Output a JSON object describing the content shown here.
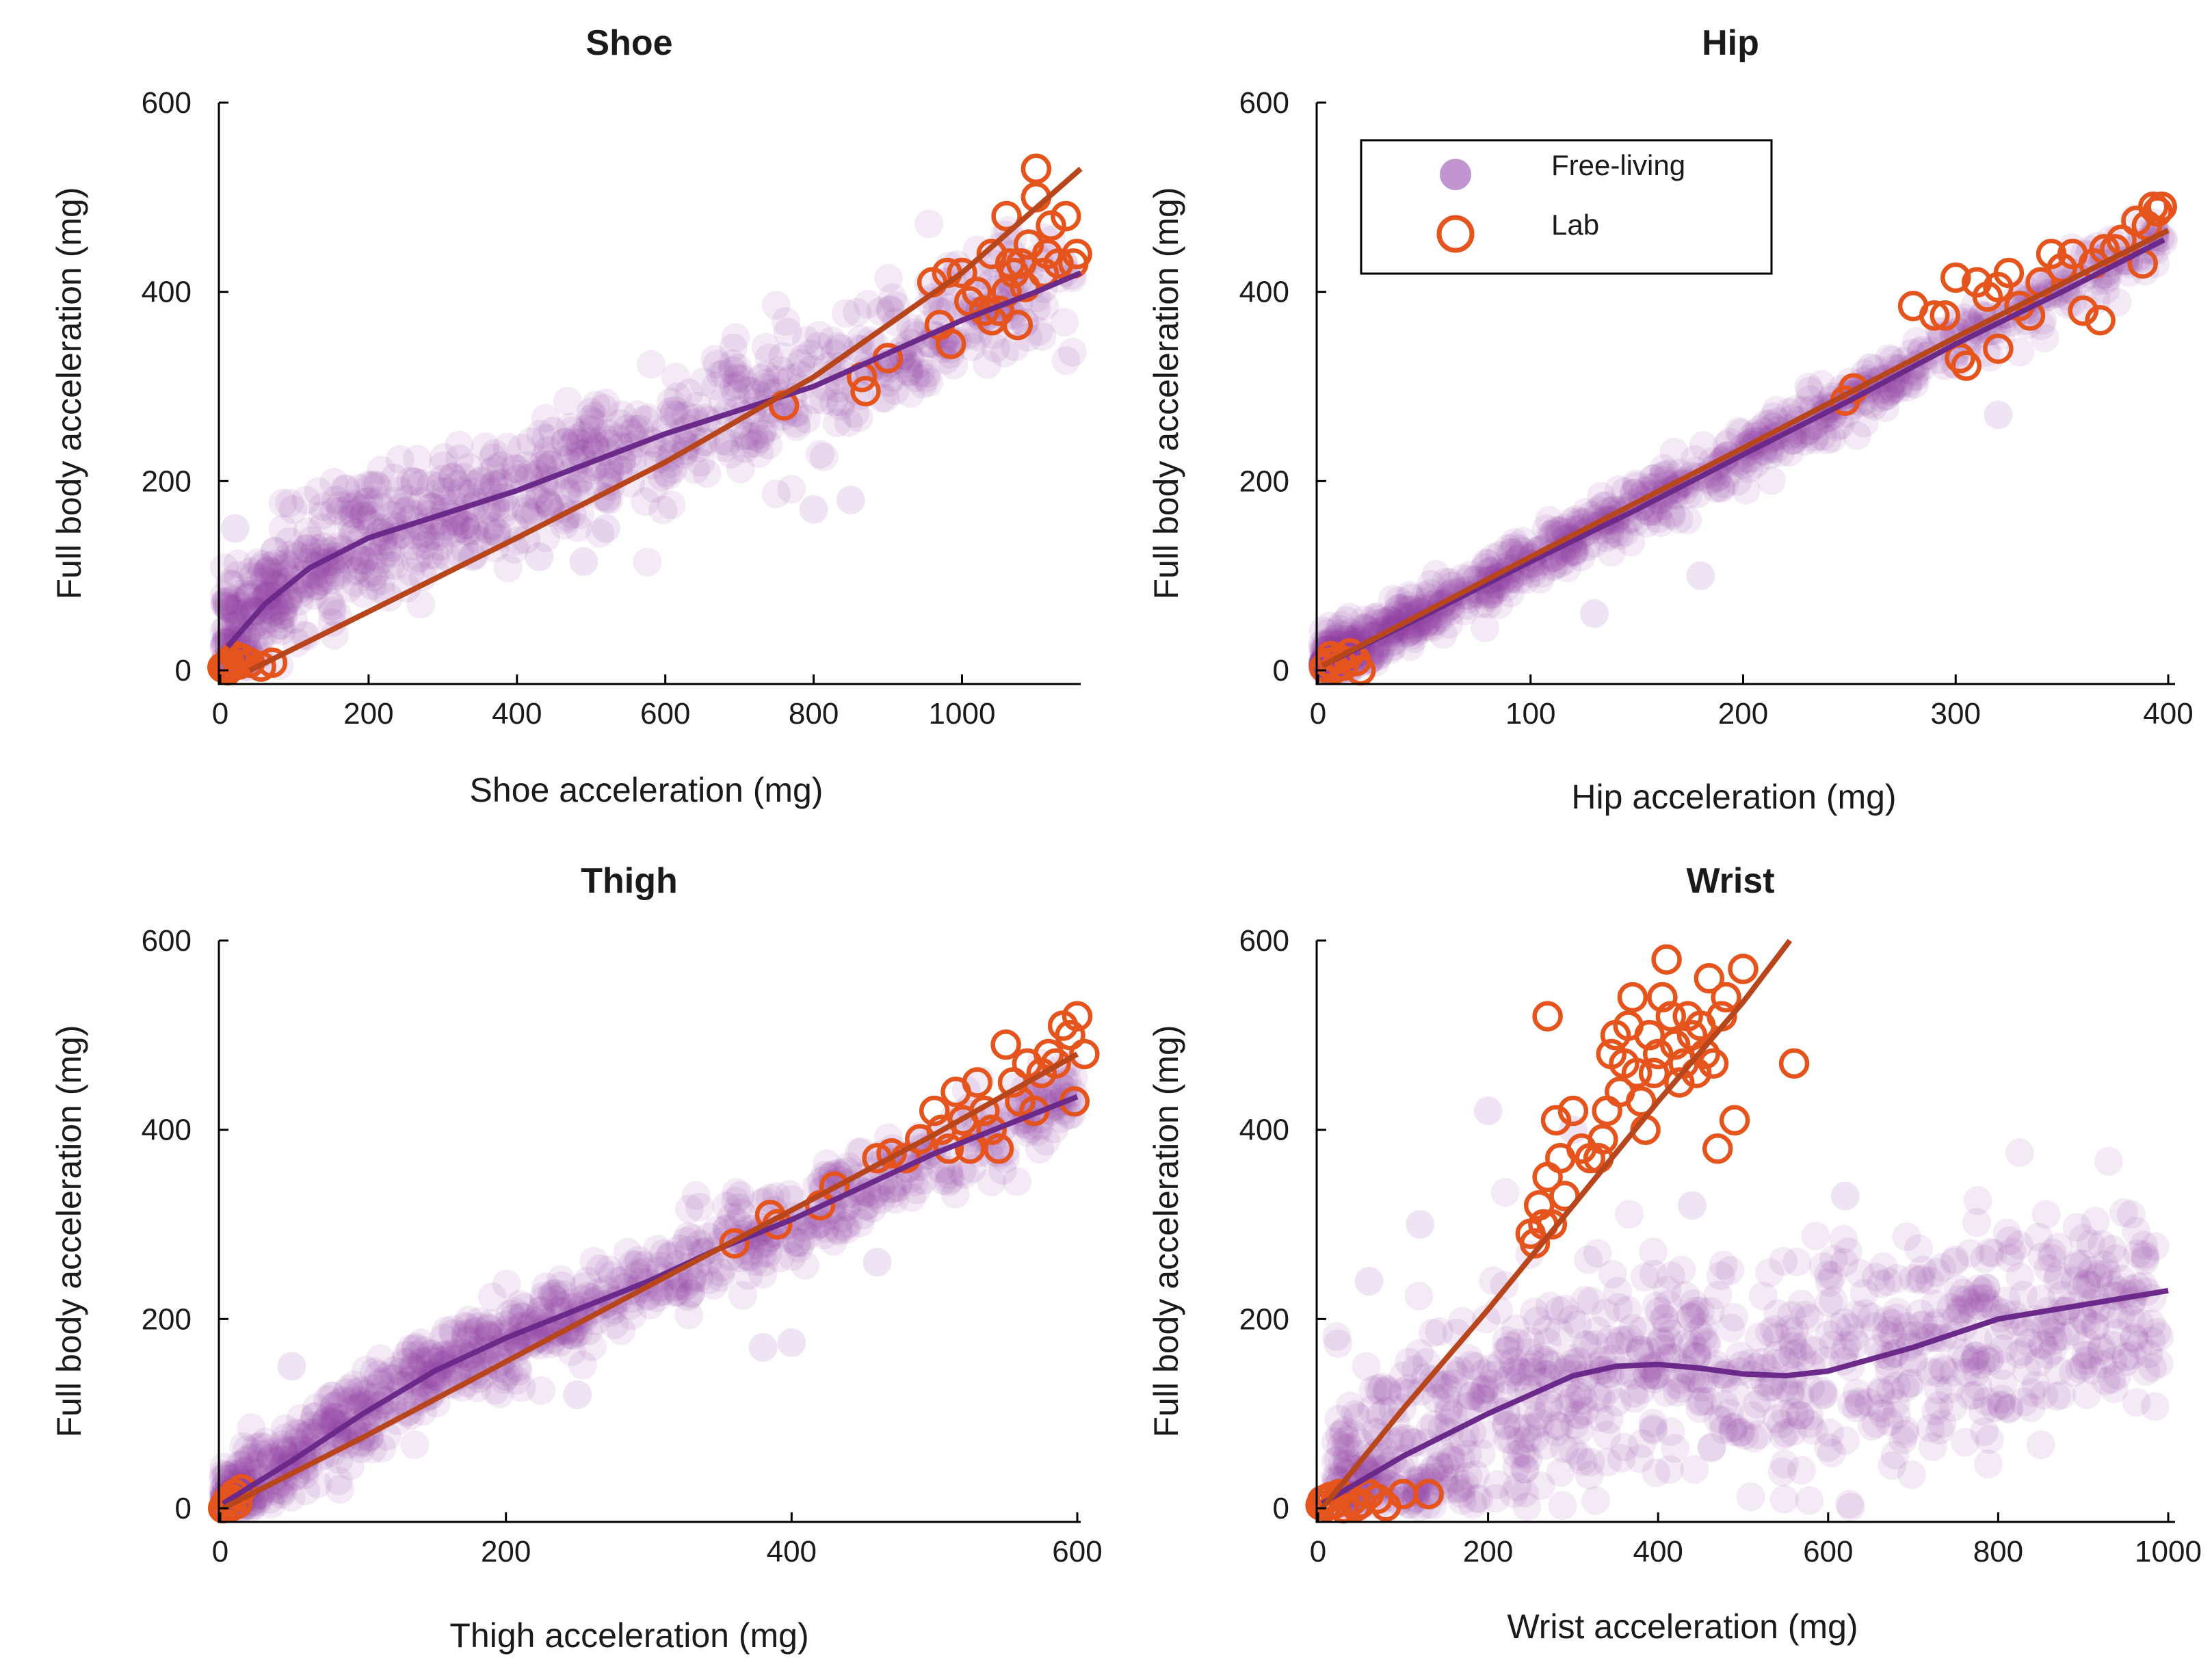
{
  "colors": {
    "free_living": "#8e3ea8",
    "free_living_fit": "#6b2a8a",
    "lab": "#e4541c",
    "lab_fit": "#b8461c"
  },
  "legend": {
    "items": [
      {
        "label": "Free-living",
        "marker": "filled-circle"
      },
      {
        "label": "Lab",
        "marker": "open-circle"
      }
    ],
    "placement": "top-left of Hip panel"
  },
  "chart_data": [
    {
      "type": "scatter",
      "title": "Shoe",
      "xlabel": "Shoe acceleration (mg)",
      "ylabel": "Full body acceleration (mg)",
      "xlim": [
        0,
        1160
      ],
      "ylim": [
        0,
        600
      ],
      "xticks": [
        0,
        200,
        400,
        600,
        800,
        1000
      ],
      "yticks": [
        0,
        200,
        400,
        600
      ],
      "free_living_cloud": {
        "approx_points": 900,
        "seed": 11,
        "x_range": [
          5,
          1150
        ],
        "x_skew": 1.5,
        "y_spread_sd": 34,
        "outliers": [
          [
            800,
            170
          ],
          [
            850,
            180
          ],
          [
            430,
            120
          ],
          [
            490,
            115
          ],
          [
            520,
            150
          ],
          [
            20,
            150
          ],
          [
            340,
            120
          ]
        ]
      },
      "free_living_fit": [
        [
          10,
          25
        ],
        [
          60,
          70
        ],
        [
          120,
          108
        ],
        [
          200,
          140
        ],
        [
          300,
          165
        ],
        [
          400,
          190
        ],
        [
          500,
          220
        ],
        [
          600,
          250
        ],
        [
          700,
          275
        ],
        [
          800,
          300
        ],
        [
          900,
          335
        ],
        [
          1000,
          370
        ],
        [
          1100,
          400
        ],
        [
          1160,
          420
        ]
      ],
      "lab_points": [
        [
          5,
          2
        ],
        [
          8,
          5
        ],
        [
          12,
          10
        ],
        [
          15,
          4
        ],
        [
          20,
          15
        ],
        [
          25,
          6
        ],
        [
          30,
          12
        ],
        [
          3,
          3
        ],
        [
          10,
          0
        ],
        [
          40,
          8
        ],
        [
          55,
          4
        ],
        [
          70,
          8
        ],
        [
          760,
          280
        ],
        [
          865,
          310
        ],
        [
          870,
          295
        ],
        [
          900,
          330
        ],
        [
          960,
          410
        ],
        [
          970,
          365
        ],
        [
          980,
          420
        ],
        [
          985,
          345
        ],
        [
          1000,
          420
        ],
        [
          1010,
          390
        ],
        [
          1020,
          400
        ],
        [
          1030,
          380
        ],
        [
          1040,
          440
        ],
        [
          1040,
          370
        ],
        [
          1050,
          380
        ],
        [
          1060,
          400
        ],
        [
          1060,
          480
        ],
        [
          1065,
          430
        ],
        [
          1070,
          420
        ],
        [
          1075,
          365
        ],
        [
          1080,
          430
        ],
        [
          1085,
          405
        ],
        [
          1090,
          450
        ],
        [
          1100,
          500
        ],
        [
          1100,
          530
        ],
        [
          1110,
          420
        ],
        [
          1115,
          440
        ],
        [
          1120,
          470
        ],
        [
          1130,
          430
        ],
        [
          1140,
          480
        ],
        [
          1150,
          430
        ],
        [
          1155,
          440
        ]
      ],
      "lab_fit": [
        [
          40,
          0
        ],
        [
          200,
          62
        ],
        [
          400,
          140
        ],
        [
          600,
          220
        ],
        [
          800,
          310
        ],
        [
          1000,
          420
        ],
        [
          1160,
          530
        ]
      ]
    },
    {
      "type": "scatter",
      "title": "Hip",
      "xlabel": "Hip acceleration (mg)",
      "ylabel": "Full body acceleration (mg)",
      "xlim": [
        0,
        400
      ],
      "ylim": [
        0,
        600
      ],
      "xticks": [
        0,
        100,
        200,
        300,
        400
      ],
      "yticks": [
        0,
        200,
        400,
        600
      ],
      "free_living_cloud": {
        "approx_points": 900,
        "seed": 23,
        "x_range": [
          2,
          398
        ],
        "x_skew": 1.6,
        "y_spread_sd": 14,
        "outliers": [
          [
            130,
            60
          ],
          [
            180,
            100
          ],
          [
            320,
            270
          ],
          [
            260,
            320
          ]
        ]
      },
      "free_living_fit": [
        [
          2,
          5
        ],
        [
          50,
          58
        ],
        [
          100,
          115
        ],
        [
          150,
          170
        ],
        [
          200,
          228
        ],
        [
          250,
          285
        ],
        [
          300,
          345
        ],
        [
          350,
          400
        ],
        [
          398,
          455
        ]
      ],
      "lab_points": [
        [
          3,
          3
        ],
        [
          5,
          8
        ],
        [
          8,
          2
        ],
        [
          10,
          12
        ],
        [
          12,
          5
        ],
        [
          15,
          18
        ],
        [
          18,
          10
        ],
        [
          20,
          0
        ],
        [
          6,
          15
        ],
        [
          248,
          285
        ],
        [
          252,
          298
        ],
        [
          280,
          385
        ],
        [
          290,
          375
        ],
        [
          295,
          375
        ],
        [
          300,
          415
        ],
        [
          302,
          330
        ],
        [
          305,
          322
        ],
        [
          310,
          410
        ],
        [
          315,
          395
        ],
        [
          320,
          340
        ],
        [
          320,
          405
        ],
        [
          325,
          420
        ],
        [
          330,
          385
        ],
        [
          335,
          375
        ],
        [
          340,
          410
        ],
        [
          345,
          440
        ],
        [
          350,
          425
        ],
        [
          355,
          440
        ],
        [
          360,
          380
        ],
        [
          365,
          430
        ],
        [
          368,
          370
        ],
        [
          370,
          445
        ],
        [
          375,
          445
        ],
        [
          378,
          455
        ],
        [
          385,
          475
        ],
        [
          388,
          430
        ],
        [
          390,
          470
        ],
        [
          393,
          490
        ],
        [
          395,
          485
        ],
        [
          397,
          490
        ]
      ],
      "lab_fit": [
        [
          2,
          5
        ],
        [
          100,
          120
        ],
        [
          200,
          235
        ],
        [
          300,
          352
        ],
        [
          400,
          465
        ]
      ]
    },
    {
      "type": "scatter",
      "title": "Thigh",
      "xlabel": "Thigh acceleration (mg)",
      "ylabel": "Full body acceleration (mg)",
      "xlim": [
        0,
        600
      ],
      "ylim": [
        0,
        600
      ],
      "xticks": [
        0,
        200,
        400,
        600
      ],
      "yticks": [
        0,
        200,
        400,
        600
      ],
      "free_living_cloud": {
        "approx_points": 900,
        "seed": 37,
        "x_range": [
          2,
          598
        ],
        "x_skew": 1.5,
        "y_spread_sd": 22,
        "outliers": [
          [
            380,
            170
          ],
          [
            400,
            175
          ],
          [
            250,
            120
          ],
          [
            50,
            150
          ],
          [
            460,
            260
          ]
        ]
      },
      "free_living_fit": [
        [
          2,
          5
        ],
        [
          50,
          50
        ],
        [
          100,
          100
        ],
        [
          150,
          145
        ],
        [
          200,
          180
        ],
        [
          250,
          210
        ],
        [
          300,
          240
        ],
        [
          350,
          275
        ],
        [
          400,
          305
        ],
        [
          450,
          340
        ],
        [
          500,
          375
        ],
        [
          550,
          405
        ],
        [
          600,
          435
        ]
      ],
      "lab_points": [
        [
          3,
          3
        ],
        [
          5,
          8
        ],
        [
          8,
          2
        ],
        [
          10,
          15
        ],
        [
          12,
          5
        ],
        [
          15,
          20
        ],
        [
          8,
          10
        ],
        [
          2,
          0
        ],
        [
          360,
          280
        ],
        [
          385,
          310
        ],
        [
          390,
          300
        ],
        [
          420,
          320
        ],
        [
          430,
          340
        ],
        [
          460,
          370
        ],
        [
          470,
          375
        ],
        [
          480,
          370
        ],
        [
          490,
          390
        ],
        [
          500,
          420
        ],
        [
          505,
          400
        ],
        [
          510,
          380
        ],
        [
          515,
          440
        ],
        [
          520,
          410
        ],
        [
          525,
          380
        ],
        [
          530,
          450
        ],
        [
          535,
          420
        ],
        [
          540,
          400
        ],
        [
          545,
          380
        ],
        [
          550,
          490
        ],
        [
          555,
          450
        ],
        [
          560,
          430
        ],
        [
          565,
          470
        ],
        [
          570,
          420
        ],
        [
          575,
          460
        ],
        [
          580,
          480
        ],
        [
          585,
          470
        ],
        [
          590,
          510
        ],
        [
          595,
          500
        ],
        [
          598,
          430
        ],
        [
          600,
          520
        ],
        [
          605,
          480
        ]
      ],
      "lab_fit": [
        [
          2,
          0
        ],
        [
          100,
          75
        ],
        [
          200,
          155
        ],
        [
          300,
          235
        ],
        [
          400,
          315
        ],
        [
          500,
          395
        ],
        [
          600,
          480
        ]
      ]
    },
    {
      "type": "scatter",
      "title": "Wrist",
      "xlabel": "Wrist acceleration (mg)",
      "ylabel": "Full body acceleration (mg)",
      "xlim": [
        0,
        1000
      ],
      "ylim": [
        0,
        600
      ],
      "xticks": [
        0,
        200,
        400,
        600,
        800,
        1000
      ],
      "yticks": [
        0,
        200,
        400,
        600
      ],
      "free_living_cloud": {
        "approx_points": 900,
        "seed": 51,
        "x_range": [
          20,
          990
        ],
        "x_skew": 1.2,
        "y_spread_sd": 60,
        "outliers": [
          [
            60,
            240
          ],
          [
            120,
            300
          ],
          [
            200,
            420
          ],
          [
            300,
            400
          ],
          [
            440,
            320
          ],
          [
            620,
            330
          ],
          [
            900,
            150
          ],
          [
            950,
            160
          ]
        ]
      },
      "free_living_fit": [
        [
          5,
          5
        ],
        [
          100,
          55
        ],
        [
          200,
          100
        ],
        [
          300,
          140
        ],
        [
          350,
          150
        ],
        [
          400,
          152
        ],
        [
          450,
          148
        ],
        [
          500,
          142
        ],
        [
          550,
          140
        ],
        [
          600,
          145
        ],
        [
          700,
          170
        ],
        [
          800,
          200
        ],
        [
          900,
          215
        ],
        [
          1000,
          230
        ]
      ],
      "lab_points": [
        [
          3,
          3
        ],
        [
          5,
          8
        ],
        [
          10,
          2
        ],
        [
          15,
          12
        ],
        [
          20,
          5
        ],
        [
          25,
          15
        ],
        [
          30,
          0
        ],
        [
          40,
          8
        ],
        [
          45,
          2
        ],
        [
          50,
          5
        ],
        [
          60,
          15
        ],
        [
          70,
          10
        ],
        [
          80,
          2
        ],
        [
          100,
          15
        ],
        [
          130,
          15
        ],
        [
          10,
          10
        ],
        [
          250,
          290
        ],
        [
          255,
          280
        ],
        [
          260,
          320
        ],
        [
          265,
          300
        ],
        [
          270,
          350
        ],
        [
          275,
          300
        ],
        [
          270,
          520
        ],
        [
          280,
          410
        ],
        [
          285,
          370
        ],
        [
          290,
          330
        ],
        [
          300,
          420
        ],
        [
          310,
          380
        ],
        [
          320,
          370
        ],
        [
          330,
          370
        ],
        [
          335,
          390
        ],
        [
          340,
          420
        ],
        [
          345,
          480
        ],
        [
          350,
          500
        ],
        [
          355,
          440
        ],
        [
          360,
          470
        ],
        [
          365,
          510
        ],
        [
          370,
          540
        ],
        [
          375,
          460
        ],
        [
          380,
          430
        ],
        [
          385,
          400
        ],
        [
          390,
          500
        ],
        [
          395,
          460
        ],
        [
          400,
          480
        ],
        [
          405,
          540
        ],
        [
          410,
          580
        ],
        [
          415,
          520
        ],
        [
          420,
          490
        ],
        [
          425,
          450
        ],
        [
          430,
          470
        ],
        [
          435,
          520
        ],
        [
          440,
          500
        ],
        [
          445,
          460
        ],
        [
          450,
          510
        ],
        [
          455,
          480
        ],
        [
          460,
          560
        ],
        [
          465,
          470
        ],
        [
          470,
          380
        ],
        [
          475,
          520
        ],
        [
          480,
          540
        ],
        [
          490,
          410
        ],
        [
          500,
          570
        ],
        [
          560,
          470
        ]
      ],
      "lab_fit": [
        [
          5,
          0
        ],
        [
          100,
          105
        ],
        [
          200,
          210
        ],
        [
          300,
          320
        ],
        [
          400,
          430
        ],
        [
          500,
          535
        ],
        [
          555,
          600
        ]
      ]
    }
  ]
}
